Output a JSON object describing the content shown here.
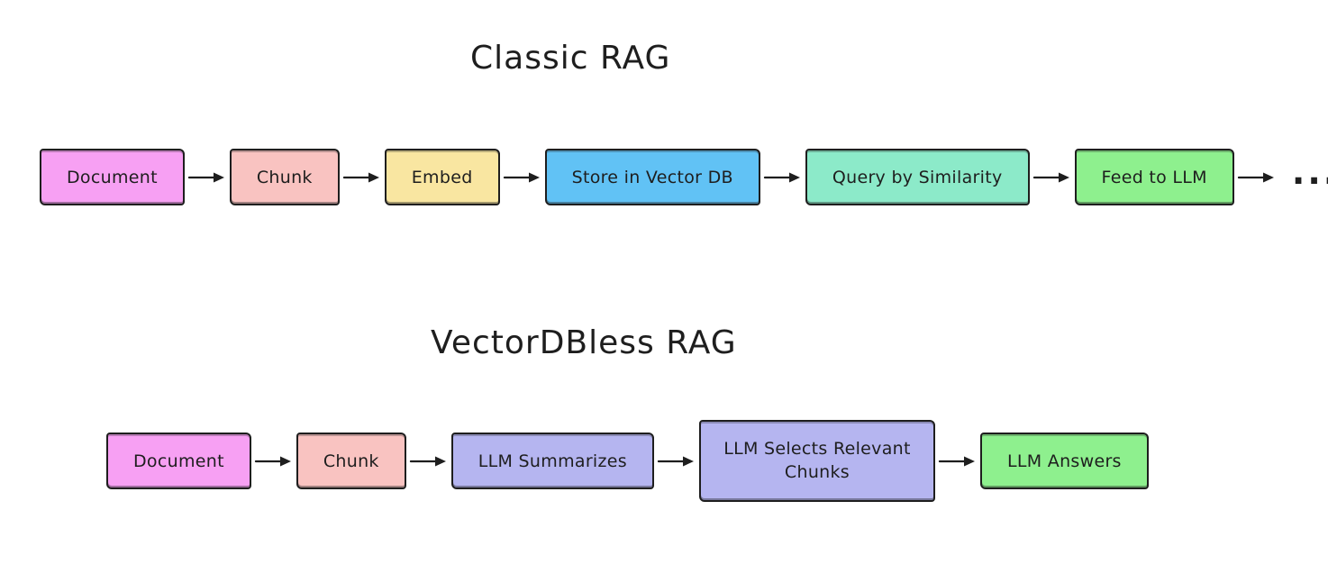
{
  "page": {
    "background": "#ffffff",
    "ink": "#1e1e1e"
  },
  "diagrams": [
    {
      "id": "classic-rag",
      "title": "Classic RAG",
      "nodes": [
        {
          "label": "Document",
          "fill": "#f7a0f3"
        },
        {
          "label": "Chunk",
          "fill": "#f9c3c1"
        },
        {
          "label": "Embed",
          "fill": "#f9e6a1"
        },
        {
          "label": "Store in Vector DB",
          "fill": "#61c2f5"
        },
        {
          "label": "Query by Similarity",
          "fill": "#8ceac9"
        },
        {
          "label": "Feed to LLM",
          "fill": "#8ef08e"
        }
      ],
      "trailing_label": "..."
    },
    {
      "id": "vectordbless-rag",
      "title": "VectorDBless RAG",
      "nodes": [
        {
          "label": "Document",
          "fill": "#f7a0f3"
        },
        {
          "label": "Chunk",
          "fill": "#f9c3c1"
        },
        {
          "label": "LLM Summarizes",
          "fill": "#b5b5f0"
        },
        {
          "label": "LLM Selects Relevant Chunks",
          "fill": "#b5b5f0",
          "size": "large"
        },
        {
          "label": "LLM Answers",
          "fill": "#8ef08e"
        }
      ]
    }
  ]
}
